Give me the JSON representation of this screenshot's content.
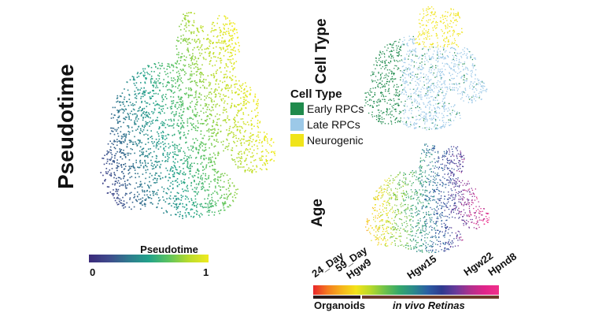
{
  "chart_data": [
    {
      "type": "scatter",
      "title": "",
      "panel_label": "Pseudotime",
      "colorbar": {
        "title": "Pseudotime",
        "min_label": "0",
        "max_label": "1",
        "range": [
          0,
          1
        ]
      },
      "colormap": [
        "#3b2a7a",
        "#3f4a8c",
        "#2f7a8e",
        "#22a28a",
        "#5cc35f",
        "#b9dc2c",
        "#f0ea1f"
      ]
    },
    {
      "type": "scatter",
      "panel_label": "Cell Type",
      "legend": {
        "title": "Cell Type",
        "placement": "left",
        "entries": [
          {
            "label": "Early RPCs",
            "color": "#1f8a4c"
          },
          {
            "label": "Late RPCs",
            "color": "#9cc9e8"
          },
          {
            "label": "Neurogenic",
            "color": "#f0e41a"
          }
        ]
      }
    },
    {
      "type": "scatter",
      "panel_label": "Age",
      "age_scale": {
        "tick_labels": [
          "24_Day",
          "59_Day",
          "Hgw9",
          "Hgw15",
          "Hgw22",
          "Hpnd8"
        ],
        "tick_positions": [
          0.02,
          0.12,
          0.16,
          0.58,
          0.86,
          1.0
        ],
        "colors": [
          "#e8262a",
          "#f47a1f",
          "#f5b41b",
          "#f3e31a",
          "#b8d92a",
          "#6fc24a",
          "#35a86a",
          "#2a8a8a",
          "#2b5fa3",
          "#2e3a8f",
          "#6a3a9a",
          "#b0308c",
          "#e0248a",
          "#f0308a"
        ],
        "groups": [
          {
            "label": "Organoids",
            "from": 0.0,
            "to": 0.12,
            "color": "#2a1a1a"
          },
          {
            "label": "in vivo Retinas",
            "from": 0.12,
            "to": 1.0,
            "color": "#6b3a2a"
          }
        ]
      }
    }
  ]
}
